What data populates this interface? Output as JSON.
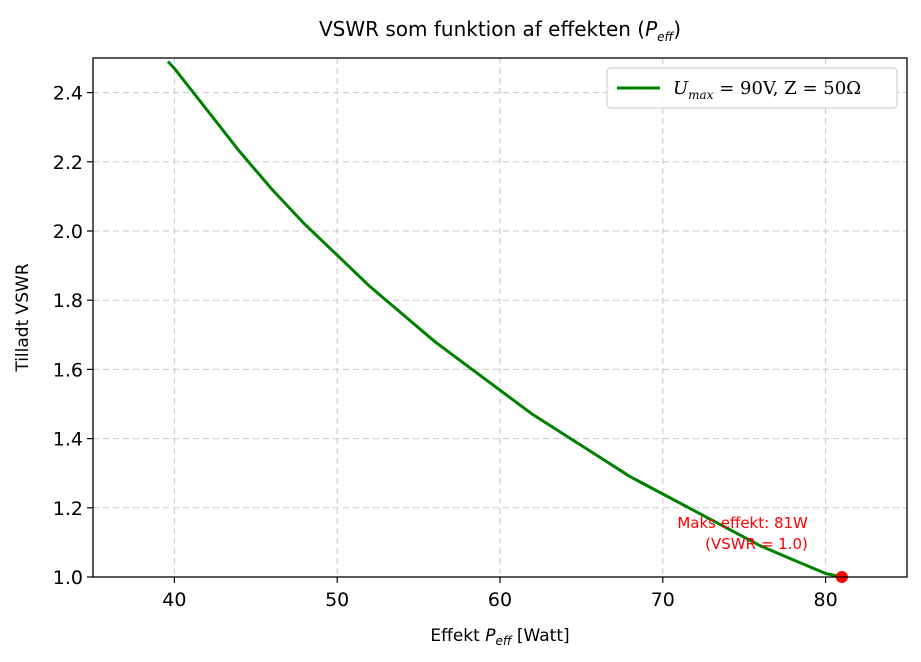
{
  "chart_data": {
    "type": "line",
    "title_main": "VSWR som funktion af effekten (",
    "title_var": "P",
    "title_sub": "eff",
    "title_end": ")",
    "xlabel_main": "Effekt ",
    "xlabel_var": "P",
    "xlabel_sub": "eff",
    "xlabel_end": " [Watt]",
    "ylabel": "Tilladt VSWR",
    "xlim": [
      35,
      85
    ],
    "ylim": [
      1.0,
      2.5
    ],
    "x_ticks": [
      40,
      50,
      60,
      70,
      80
    ],
    "y_ticks": [
      1.0,
      1.2,
      1.4,
      1.6,
      1.8,
      2.0,
      2.2,
      2.4
    ],
    "grid": true,
    "legend_position": "upper right",
    "legend_main": "U",
    "legend_sub": "max",
    "legend_rest": " = 90V,  Z = 50Ω",
    "series": [
      {
        "color": "#008000",
        "x": [
          39.6,
          40,
          42,
          44,
          46,
          48,
          50,
          52,
          54,
          56,
          58,
          60,
          62,
          64,
          66,
          68,
          70,
          72,
          74,
          76,
          78,
          80,
          81
        ],
        "y": [
          2.49,
          2.47,
          2.35,
          2.23,
          2.12,
          2.02,
          1.93,
          1.84,
          1.76,
          1.68,
          1.61,
          1.54,
          1.47,
          1.41,
          1.35,
          1.29,
          1.24,
          1.19,
          1.14,
          1.09,
          1.05,
          1.01,
          1.0
        ]
      }
    ],
    "highlight_point": {
      "x": 81,
      "y": 1.0,
      "color": "#ff0000"
    },
    "annotation_line1": "Maks effekt: 81W",
    "annotation_line2": "(VSWR = 1.0)",
    "annotation_color": "#ff0000",
    "grid_color": "#c8c8c8"
  }
}
